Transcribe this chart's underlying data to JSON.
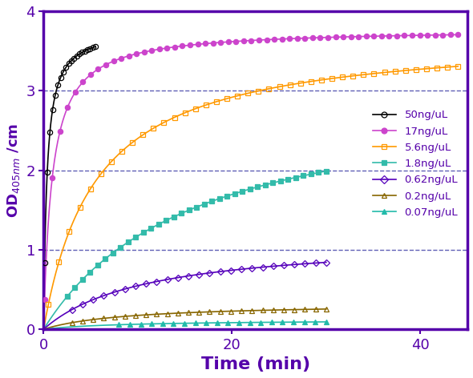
{
  "title": "",
  "xlabel": "Time (min)",
  "xlim": [
    0,
    45
  ],
  "ylim": [
    0,
    4
  ],
  "yticks": [
    0,
    1,
    2,
    3,
    4
  ],
  "xticks": [
    0,
    20,
    40
  ],
  "grid_color": "#4444aa",
  "axis_color": "#5500aa",
  "series": [
    {
      "label": "50ng/uL",
      "color": "#000000",
      "marker": "o",
      "fillstyle": "none",
      "Vmax": 3.78,
      "Km": 0.35,
      "t_mark_start": 0.1,
      "t_mark_end": 5.5,
      "n_marks": 20,
      "t_line_end": 5.5
    },
    {
      "label": "17ng/uL",
      "color": "#cc44cc",
      "marker": "o",
      "fillstyle": "full",
      "Vmax": 3.78,
      "Km": 0.9,
      "t_mark_start": 0.1,
      "t_mark_end": 44,
      "n_marks": 55,
      "t_line_end": 44
    },
    {
      "label": "5.6ng/uL",
      "color": "#ff9900",
      "marker": "s",
      "fillstyle": "none",
      "Vmax": 3.72,
      "Km": 5.5,
      "t_mark_start": 0.5,
      "t_mark_end": 44,
      "n_marks": 40,
      "t_line_end": 44
    },
    {
      "label": "1.8ng/uL",
      "color": "#33bbaa",
      "marker": "s",
      "fillstyle": "full",
      "Vmax": 3.05,
      "Km": 16.0,
      "t_mark_start": 2.5,
      "t_mark_end": 30,
      "n_marks": 35,
      "t_line_end": 30
    },
    {
      "label": "0.62ng/uL",
      "color": "#5500bb",
      "marker": "D",
      "fillstyle": "none",
      "Vmax": 1.15,
      "Km": 11.0,
      "t_mark_start": 3.0,
      "t_mark_end": 30,
      "n_marks": 25,
      "t_line_end": 30
    },
    {
      "label": "0.2ng/uL",
      "color": "#886600",
      "marker": "^",
      "fillstyle": "none",
      "Vmax": 0.33,
      "Km": 9.0,
      "t_mark_start": 3.0,
      "t_mark_end": 30,
      "n_marks": 25,
      "t_line_end": 30
    },
    {
      "label": "0.07ng/uL",
      "color": "#22bbaa",
      "marker": "^",
      "fillstyle": "full",
      "Vmax": 0.12,
      "Km": 9.0,
      "t_mark_start": 8.0,
      "t_mark_end": 30,
      "n_marks": 20,
      "t_line_end": 30
    }
  ]
}
